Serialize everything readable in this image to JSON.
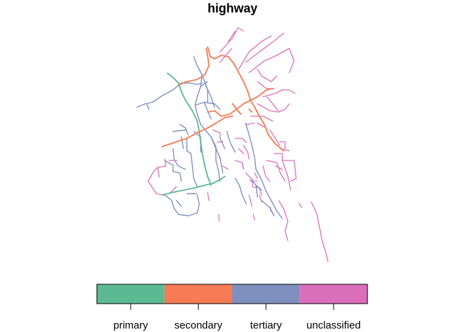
{
  "title": "highway",
  "legend": {
    "items": [
      {
        "label": "primary",
        "color": "#5BBA92"
      },
      {
        "label": "secondary",
        "color": "#F77B54"
      },
      {
        "label": "tertiary",
        "color": "#7F8FBF"
      },
      {
        "label": "unclassified",
        "color": "#DB6EBA"
      }
    ]
  }
}
